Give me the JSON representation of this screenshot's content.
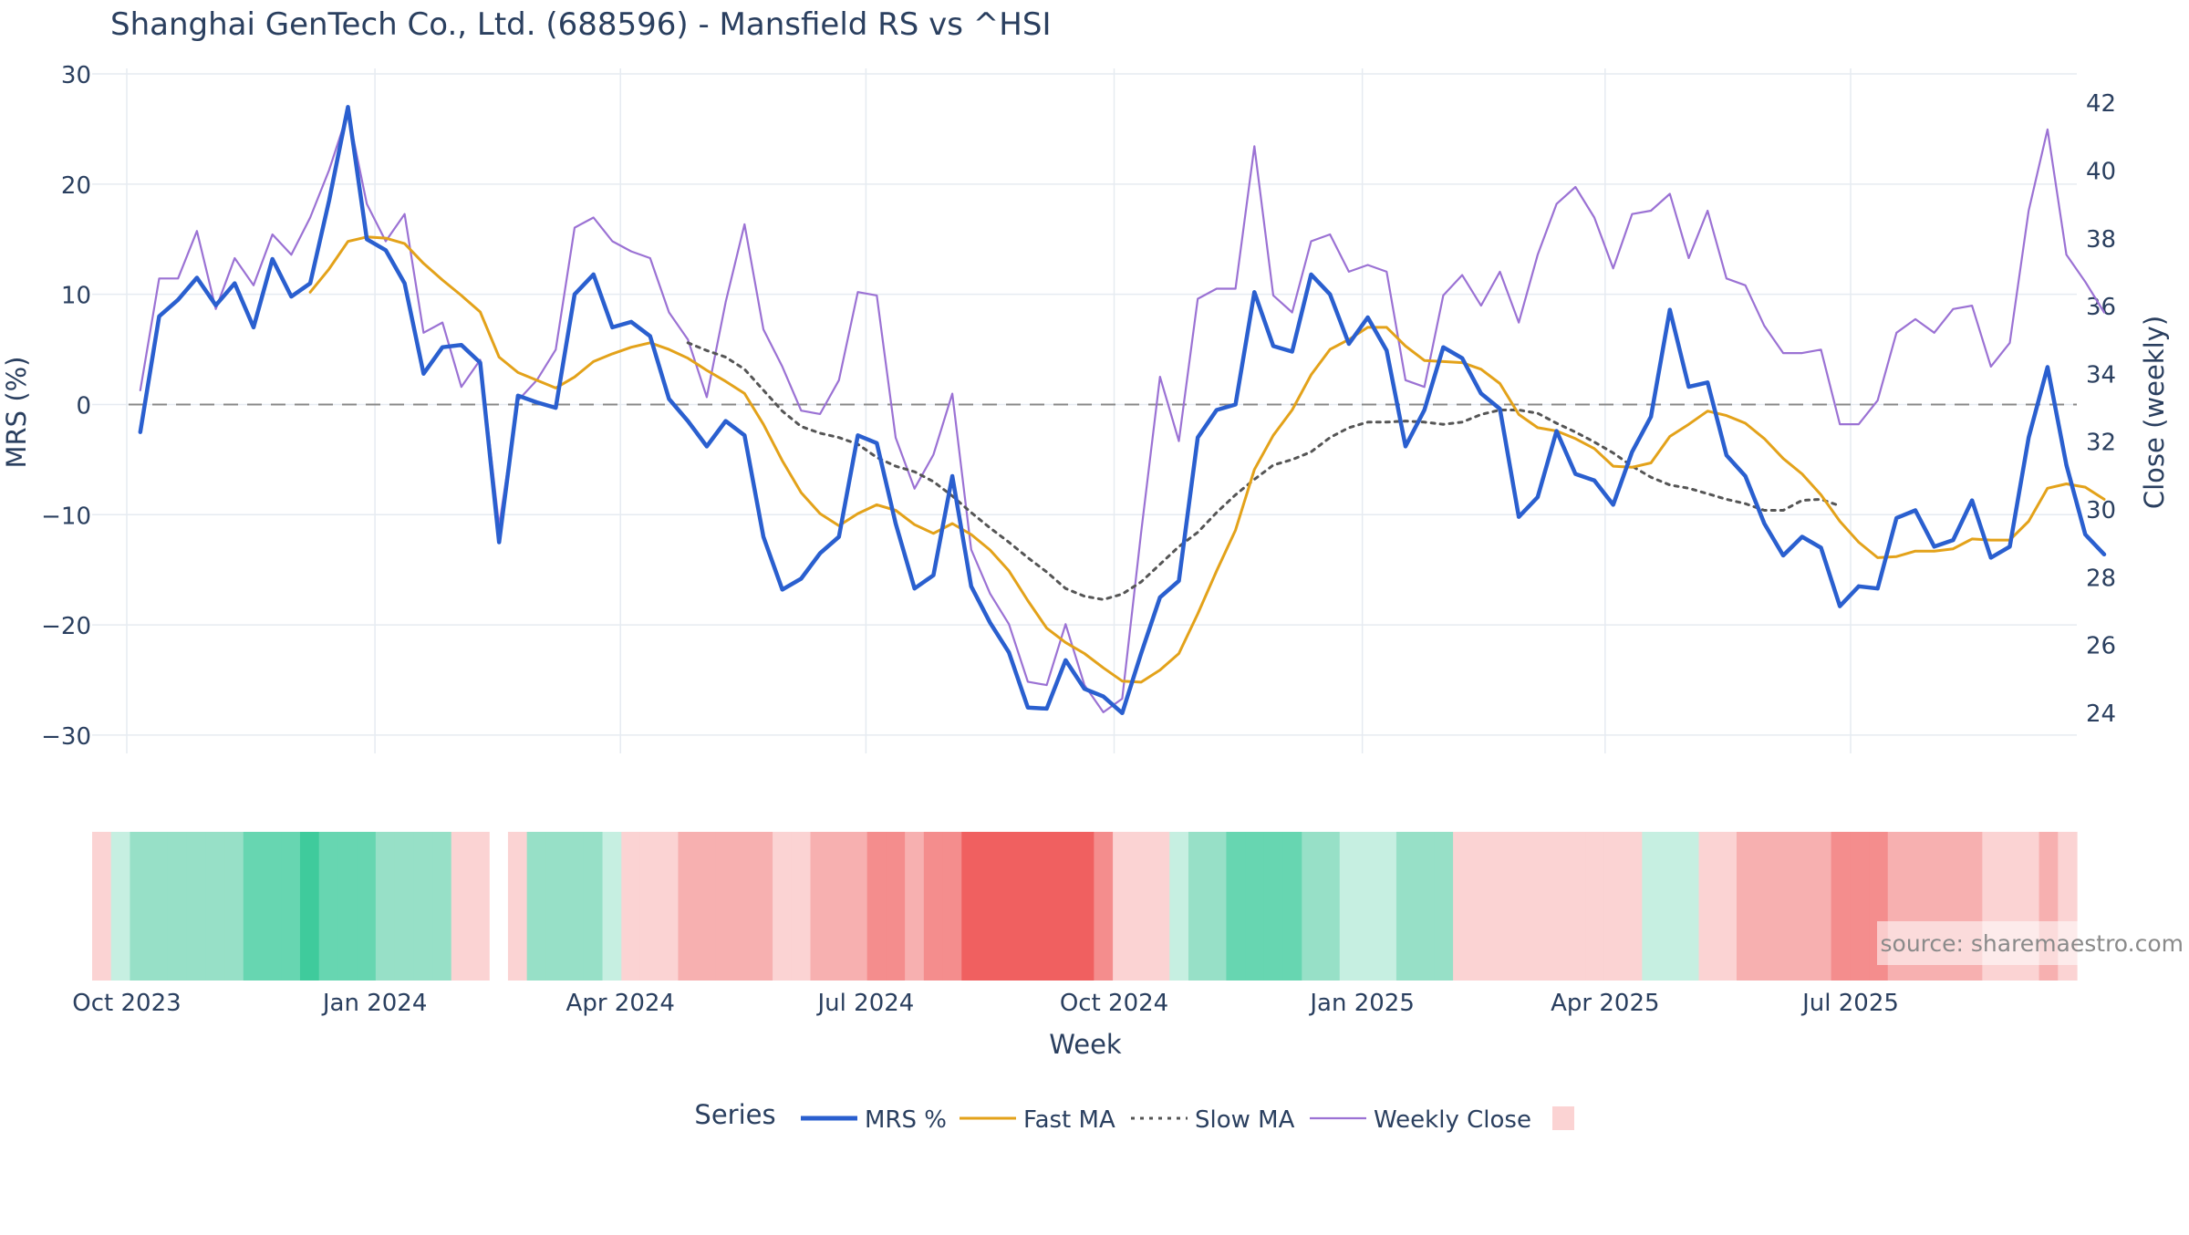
{
  "chart_data": {
    "type": "line",
    "title": "Shanghai GenTech Co., Ltd. (688596) - Mansfield RS vs ^HSI",
    "xlabel": "Week",
    "ylabel_left": "MRS (%)",
    "ylabel_right": "Close (weekly)",
    "x_start": "2023-10-06",
    "x_tick_labels": [
      "Oct 2023",
      "Jan 2024",
      "Apr 2024",
      "Jul 2024",
      "Oct 2024",
      "Jan 2025",
      "Apr 2025",
      "Jul 2025"
    ],
    "x_tick_dates": [
      "2023-10-01",
      "2024-01-01",
      "2024-04-01",
      "2024-07-01",
      "2024-10-01",
      "2025-01-01",
      "2025-04-01",
      "2025-07-01"
    ],
    "x_end": "2025-09-23",
    "ylim_left": [
      -31,
      30.5
    ],
    "yticks_left": [
      30,
      20,
      10,
      0,
      -10,
      -20,
      -30
    ],
    "ytick_labels_left": [
      "30",
      "20",
      "10",
      "0",
      "−10",
      "−20",
      "−30"
    ],
    "ylim_right": [
      23,
      43
    ],
    "yticks_right": [
      42,
      40,
      38,
      36,
      34,
      32,
      30,
      28,
      26,
      24
    ],
    "ytick_labels_right": [
      "42",
      "40",
      "38",
      "36",
      "34",
      "32",
      "30",
      "28",
      "26",
      "24"
    ],
    "zero_line": 0,
    "grid": true,
    "legend_title": "Series",
    "legend_position": "bottom",
    "series": [
      {
        "name": "MRS %",
        "axis": "left",
        "color": "#2a5fcf",
        "style": "solid",
        "values": [
          -2.5,
          8.0,
          9.5,
          11.5,
          9.0,
          11.0,
          7.0,
          13.2,
          9.8,
          11.0,
          18.5,
          27.0,
          15.0,
          14.0,
          11.0,
          2.8,
          5.2,
          5.4,
          3.8,
          -12.5,
          0.8,
          0.2,
          -0.3,
          10.0,
          11.8,
          7.0,
          7.5,
          6.2,
          0.5,
          -1.5,
          -3.8,
          -1.5,
          -2.8,
          -12.0,
          -16.8,
          -15.8,
          -13.5,
          -12.0,
          -2.8,
          -3.5,
          -10.8,
          -16.7,
          -15.5,
          -6.5,
          -16.5,
          -19.8,
          -22.5,
          -27.5,
          -27.6,
          -23.2,
          -25.8,
          -26.5,
          -28.0,
          -22.6,
          -17.5,
          -16.0,
          -3.0,
          -0.5,
          0.0,
          10.2,
          5.3,
          4.8,
          11.8,
          10.0,
          5.5,
          7.9,
          4.9,
          -3.8,
          -0.5,
          5.2,
          4.2,
          1.0,
          -0.4,
          -10.2,
          -8.4,
          -2.4,
          -6.3,
          -6.9,
          -9.1,
          -4.3,
          -1.1,
          8.6,
          1.6,
          2.0,
          -4.6,
          -6.5,
          -10.8,
          -13.7,
          -12.0,
          -13.0,
          -18.3,
          -16.5,
          -16.7,
          -10.3,
          -9.6,
          -12.9,
          -12.3,
          -8.7,
          -13.9,
          -12.9,
          -3.0,
          3.4,
          -5.5,
          -11.8,
          -13.6
        ]
      },
      {
        "name": "Fast MA",
        "axis": "left",
        "color": "#e3a21a",
        "style": "solid",
        "start_index": 9,
        "values": [
          10.2,
          12.3,
          14.8,
          15.2,
          15.1,
          14.6,
          12.8,
          11.3,
          9.9,
          8.4,
          4.3,
          2.9,
          2.2,
          1.5,
          2.5,
          3.9,
          4.6,
          5.2,
          5.6,
          5.0,
          4.2,
          3.1,
          2.1,
          1.0,
          -1.8,
          -5.1,
          -8.0,
          -9.9,
          -11.0,
          -9.9,
          -9.1,
          -9.6,
          -10.9,
          -11.7,
          -10.8,
          -11.8,
          -13.2,
          -15.1,
          -17.8,
          -20.3,
          -21.6,
          -22.6,
          -23.9,
          -25.1,
          -25.2,
          -24.1,
          -22.6,
          -19.0,
          -15.1,
          -11.4,
          -5.9,
          -2.8,
          -0.5,
          2.7,
          5.0,
          5.9,
          7.0,
          7.0,
          5.3,
          4.0,
          3.9,
          3.8,
          3.2,
          1.9,
          -0.9,
          -2.1,
          -2.4,
          -3.1,
          -4.0,
          -5.6,
          -5.7,
          -5.3,
          -2.9,
          -1.8,
          -0.6,
          -1.0,
          -1.7,
          -3.1,
          -4.9,
          -6.3,
          -8.2,
          -10.6,
          -12.5,
          -13.9,
          -13.8,
          -13.3,
          -13.3,
          -13.1,
          -12.2,
          -12.3,
          -12.3,
          -10.6,
          -7.6,
          -7.2,
          -7.5,
          -8.6
        ]
      },
      {
        "name": "Slow MA",
        "axis": "left",
        "color": "#555555",
        "style": "dotted",
        "start_index": 29,
        "values": [
          5.6,
          4.9,
          4.3,
          3.2,
          1.3,
          -0.6,
          -2.0,
          -2.6,
          -3.0,
          -3.6,
          -4.8,
          -5.6,
          -6.1,
          -7.0,
          -8.3,
          -9.8,
          -11.2,
          -12.5,
          -13.9,
          -15.2,
          -16.7,
          -17.4,
          -17.7,
          -17.2,
          -16.1,
          -14.5,
          -12.9,
          -11.6,
          -9.8,
          -8.2,
          -6.8,
          -5.5,
          -5.0,
          -4.3,
          -3.0,
          -2.1,
          -1.6,
          -1.6,
          -1.5,
          -1.6,
          -1.8,
          -1.6,
          -0.9,
          -0.5,
          -0.5,
          -0.8,
          -1.7,
          -2.5,
          -3.4,
          -4.4,
          -5.6,
          -6.6,
          -7.3,
          -7.6,
          -8.1,
          -8.6,
          -9.0,
          -9.6,
          -9.6,
          -8.7,
          -8.6,
          -9.2
        ]
      },
      {
        "name": "Weekly Close",
        "axis": "right",
        "color": "#9b72d4",
        "style": "solid",
        "values": [
          33.5,
          36.8,
          36.8,
          38.2,
          35.9,
          37.4,
          36.6,
          38.1,
          37.5,
          38.6,
          40.0,
          41.7,
          39.0,
          37.9,
          38.7,
          35.2,
          35.5,
          33.6,
          34.4,
          29.5,
          33.2,
          33.8,
          34.7,
          38.3,
          38.6,
          37.9,
          37.6,
          37.4,
          35.8,
          35.0,
          33.3,
          36.1,
          38.4,
          35.3,
          34.2,
          32.9,
          32.8,
          33.8,
          36.4,
          36.3,
          32.1,
          30.6,
          31.6,
          33.4,
          28.8,
          27.5,
          26.6,
          24.9,
          24.8,
          26.6,
          24.8,
          24.0,
          24.4,
          29.3,
          33.9,
          32.0,
          36.2,
          36.5,
          36.5,
          40.7,
          36.3,
          35.8,
          37.9,
          38.1,
          37.0,
          37.2,
          37.0,
          33.8,
          33.6,
          36.3,
          36.9,
          36.0,
          37.0,
          35.5,
          37.5,
          39.0,
          39.5,
          38.6,
          37.1,
          38.7,
          38.8,
          39.3,
          37.4,
          38.8,
          36.8,
          36.6,
          35.4,
          34.6,
          34.6,
          34.7,
          32.5,
          32.5,
          33.2,
          35.2,
          35.6,
          35.2,
          35.9,
          36.0,
          34.2,
          34.9,
          38.8,
          41.2,
          37.5,
          36.7,
          35.8
        ]
      }
    ],
    "regime_colors": {
      "g3": "#3fcb9c",
      "g2": "#67d6b1",
      "g1": "#97e0c7",
      "g0": "#c6efe1",
      "r0": "#fbd3d3",
      "r1": "#f7b0b0",
      "r2": "#f48d8d",
      "r3": "#f06060"
    },
    "regime_strip": [
      "r0",
      "g0",
      "g1",
      "g1",
      "g1",
      "g1",
      "g1",
      "g1",
      "g2",
      "g2",
      "g2",
      "g3",
      "g2",
      "g2",
      "g2",
      "g1",
      "g1",
      "g1",
      "g1",
      "r0",
      "r0",
      "gap",
      "r0",
      "g1",
      "g1",
      "g1",
      "g1",
      "g0",
      "r0",
      "r0",
      "r0",
      "r1",
      "r1",
      "r1",
      "r1",
      "r1",
      "r0",
      "r0",
      "r1",
      "r1",
      "r1",
      "r2",
      "r2",
      "r1",
      "r2",
      "r2",
      "r3",
      "r3",
      "r3",
      "r3",
      "r3",
      "r3",
      "r3",
      "r2",
      "r0",
      "r0",
      "r0",
      "g0",
      "g1",
      "g1",
      "g2",
      "g2",
      "g2",
      "g2",
      "g1",
      "g1",
      "g0",
      "g0",
      "g0",
      "g1",
      "g1",
      "g1",
      "r0",
      "r0",
      "r0",
      "r0",
      "r0",
      "r0",
      "r0",
      "r0",
      "r0",
      "r0",
      "g0",
      "g0",
      "g0",
      "r0",
      "r0",
      "r1",
      "r1",
      "r1",
      "r1",
      "r1",
      "r2",
      "r2",
      "r2",
      "r1",
      "r1",
      "r1",
      "r1",
      "r1",
      "r0",
      "r0",
      "r0",
      "r1",
      "r0"
    ],
    "legend_swatch_color": "#fbd3d3"
  },
  "source_label": "source: sharemaestro.com"
}
